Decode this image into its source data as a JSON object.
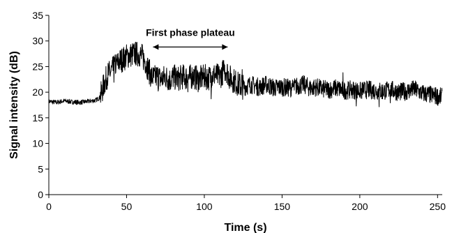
{
  "chart_data": {
    "type": "line",
    "title": "",
    "xlabel": "Time (s)",
    "ylabel": "Signal intensity (dB)",
    "xlim": [
      0,
      253
    ],
    "ylim": [
      0,
      35
    ],
    "x_ticks": [
      0,
      50,
      100,
      150,
      200,
      250
    ],
    "y_ticks": [
      0,
      5,
      10,
      15,
      20,
      25,
      30,
      35
    ],
    "grid": false,
    "line_color": "#000000",
    "annotations": [
      {
        "text": "First phase plateau",
        "x_start": 67,
        "x_end": 115,
        "y": 29.5,
        "arrow": "double"
      }
    ],
    "series": [
      {
        "x": [
          0,
          5,
          10,
          15,
          20,
          25,
          30,
          33,
          36,
          38,
          40,
          42,
          44,
          46,
          48,
          50,
          52,
          54,
          56,
          58,
          60,
          62,
          64,
          66,
          68,
          70,
          72,
          75,
          78,
          80,
          83,
          86,
          90,
          93,
          96,
          100,
          103,
          106,
          110,
          112,
          114,
          116,
          118,
          120,
          122,
          125,
          130,
          135,
          140,
          145,
          150,
          155,
          160,
          164,
          168,
          172,
          176,
          180,
          185,
          190,
          195,
          200,
          205,
          210,
          215,
          220,
          225,
          230,
          235,
          240,
          245,
          250,
          253
        ],
        "y": [
          18.2,
          18.0,
          18.3,
          18.1,
          18.0,
          18.2,
          18.4,
          19.0,
          22.0,
          23.5,
          24.0,
          24.8,
          25.5,
          26.2,
          26.5,
          27.0,
          27.2,
          27.4,
          27.5,
          27.4,
          27.0,
          26.0,
          24.5,
          23.0,
          22.8,
          23.2,
          22.5,
          23.0,
          22.4,
          23.0,
          22.6,
          23.0,
          22.8,
          23.2,
          22.5,
          23.0,
          22.8,
          23.4,
          23.0,
          24.0,
          24.5,
          23.0,
          22.5,
          22.0,
          21.5,
          21.0,
          21.5,
          21.0,
          21.5,
          20.8,
          21.0,
          20.8,
          21.2,
          21.5,
          20.8,
          21.0,
          20.6,
          20.5,
          20.8,
          20.3,
          20.5,
          20.2,
          20.5,
          20.3,
          20.2,
          20.5,
          20.0,
          20.2,
          20.6,
          19.8,
          19.5,
          19.2,
          19.0
        ]
      }
    ]
  }
}
